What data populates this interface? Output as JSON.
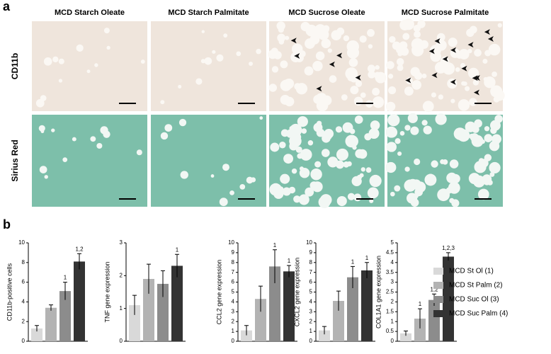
{
  "panel_a": {
    "label": "a",
    "columns": [
      "MCD Starch Oleate",
      "MCD Starch Palmitate",
      "MCD Sucrose Oleate",
      "MCD Sucrose Palmitate"
    ],
    "rows": [
      "CD11b",
      "Sirius Red"
    ]
  },
  "panel_b_label": "b",
  "legend": {
    "names": [
      "MCD St Ol (1)",
      "MCD St Palm (2)",
      "MCD Suc Ol (3)",
      "MCD Suc Palm (4)"
    ],
    "colors": [
      "#d9d9d9",
      "#b3b3b3",
      "#8c8c8c",
      "#333333"
    ]
  },
  "chart_data": [
    {
      "type": "bar",
      "y_label": "CD11b-positive cells",
      "ylim": [
        0,
        10
      ],
      "yticks": [
        0,
        2,
        4,
        6,
        8,
        10
      ],
      "values": [
        1.3,
        3.4,
        5.1,
        8.1
      ],
      "errors": [
        0.3,
        0.3,
        0.9,
        0.8
      ],
      "annotations": [
        null,
        null,
        "1",
        "1,2"
      ]
    },
    {
      "type": "bar",
      "y_label": "TNF gene expression",
      "ylim": [
        0,
        3
      ],
      "yticks": [
        0,
        1,
        2,
        3
      ],
      "values": [
        1.1,
        1.9,
        1.75,
        2.3
      ],
      "errors": [
        0.3,
        0.45,
        0.4,
        0.35
      ],
      "annotations": [
        null,
        null,
        null,
        "1"
      ]
    },
    {
      "type": "bar",
      "y_label": "CCL2 gene expression",
      "ylim": [
        0,
        10
      ],
      "yticks": [
        0,
        1,
        2,
        3,
        4,
        5,
        6,
        7,
        8,
        9,
        10
      ],
      "values": [
        1.1,
        4.3,
        7.6,
        7.1
      ],
      "errors": [
        0.5,
        1.3,
        1.7,
        0.6
      ],
      "annotations": [
        null,
        null,
        "1",
        "1"
      ]
    },
    {
      "type": "bar",
      "y_label": "CXCL2 gene expression",
      "ylim": [
        0,
        10
      ],
      "yticks": [
        0,
        1,
        2,
        3,
        4,
        5,
        6,
        7,
        8,
        9,
        10
      ],
      "values": [
        1.1,
        4.1,
        6.5,
        7.2
      ],
      "errors": [
        0.4,
        1.0,
        1.1,
        0.8
      ],
      "annotations": [
        null,
        null,
        "1",
        "1"
      ]
    },
    {
      "type": "bar",
      "y_label": "COL1A1 gene expression",
      "ylim": [
        0,
        5
      ],
      "yticks": [
        0,
        0.5,
        1,
        1.5,
        2,
        2.5,
        3,
        3.5,
        4,
        4.5,
        5
      ],
      "values": [
        0.4,
        1.15,
        2.1,
        4.3
      ],
      "errors": [
        0.12,
        0.5,
        0.3,
        0.2
      ],
      "annotations": [
        null,
        "1",
        "1,2",
        "1,2,3"
      ]
    }
  ]
}
